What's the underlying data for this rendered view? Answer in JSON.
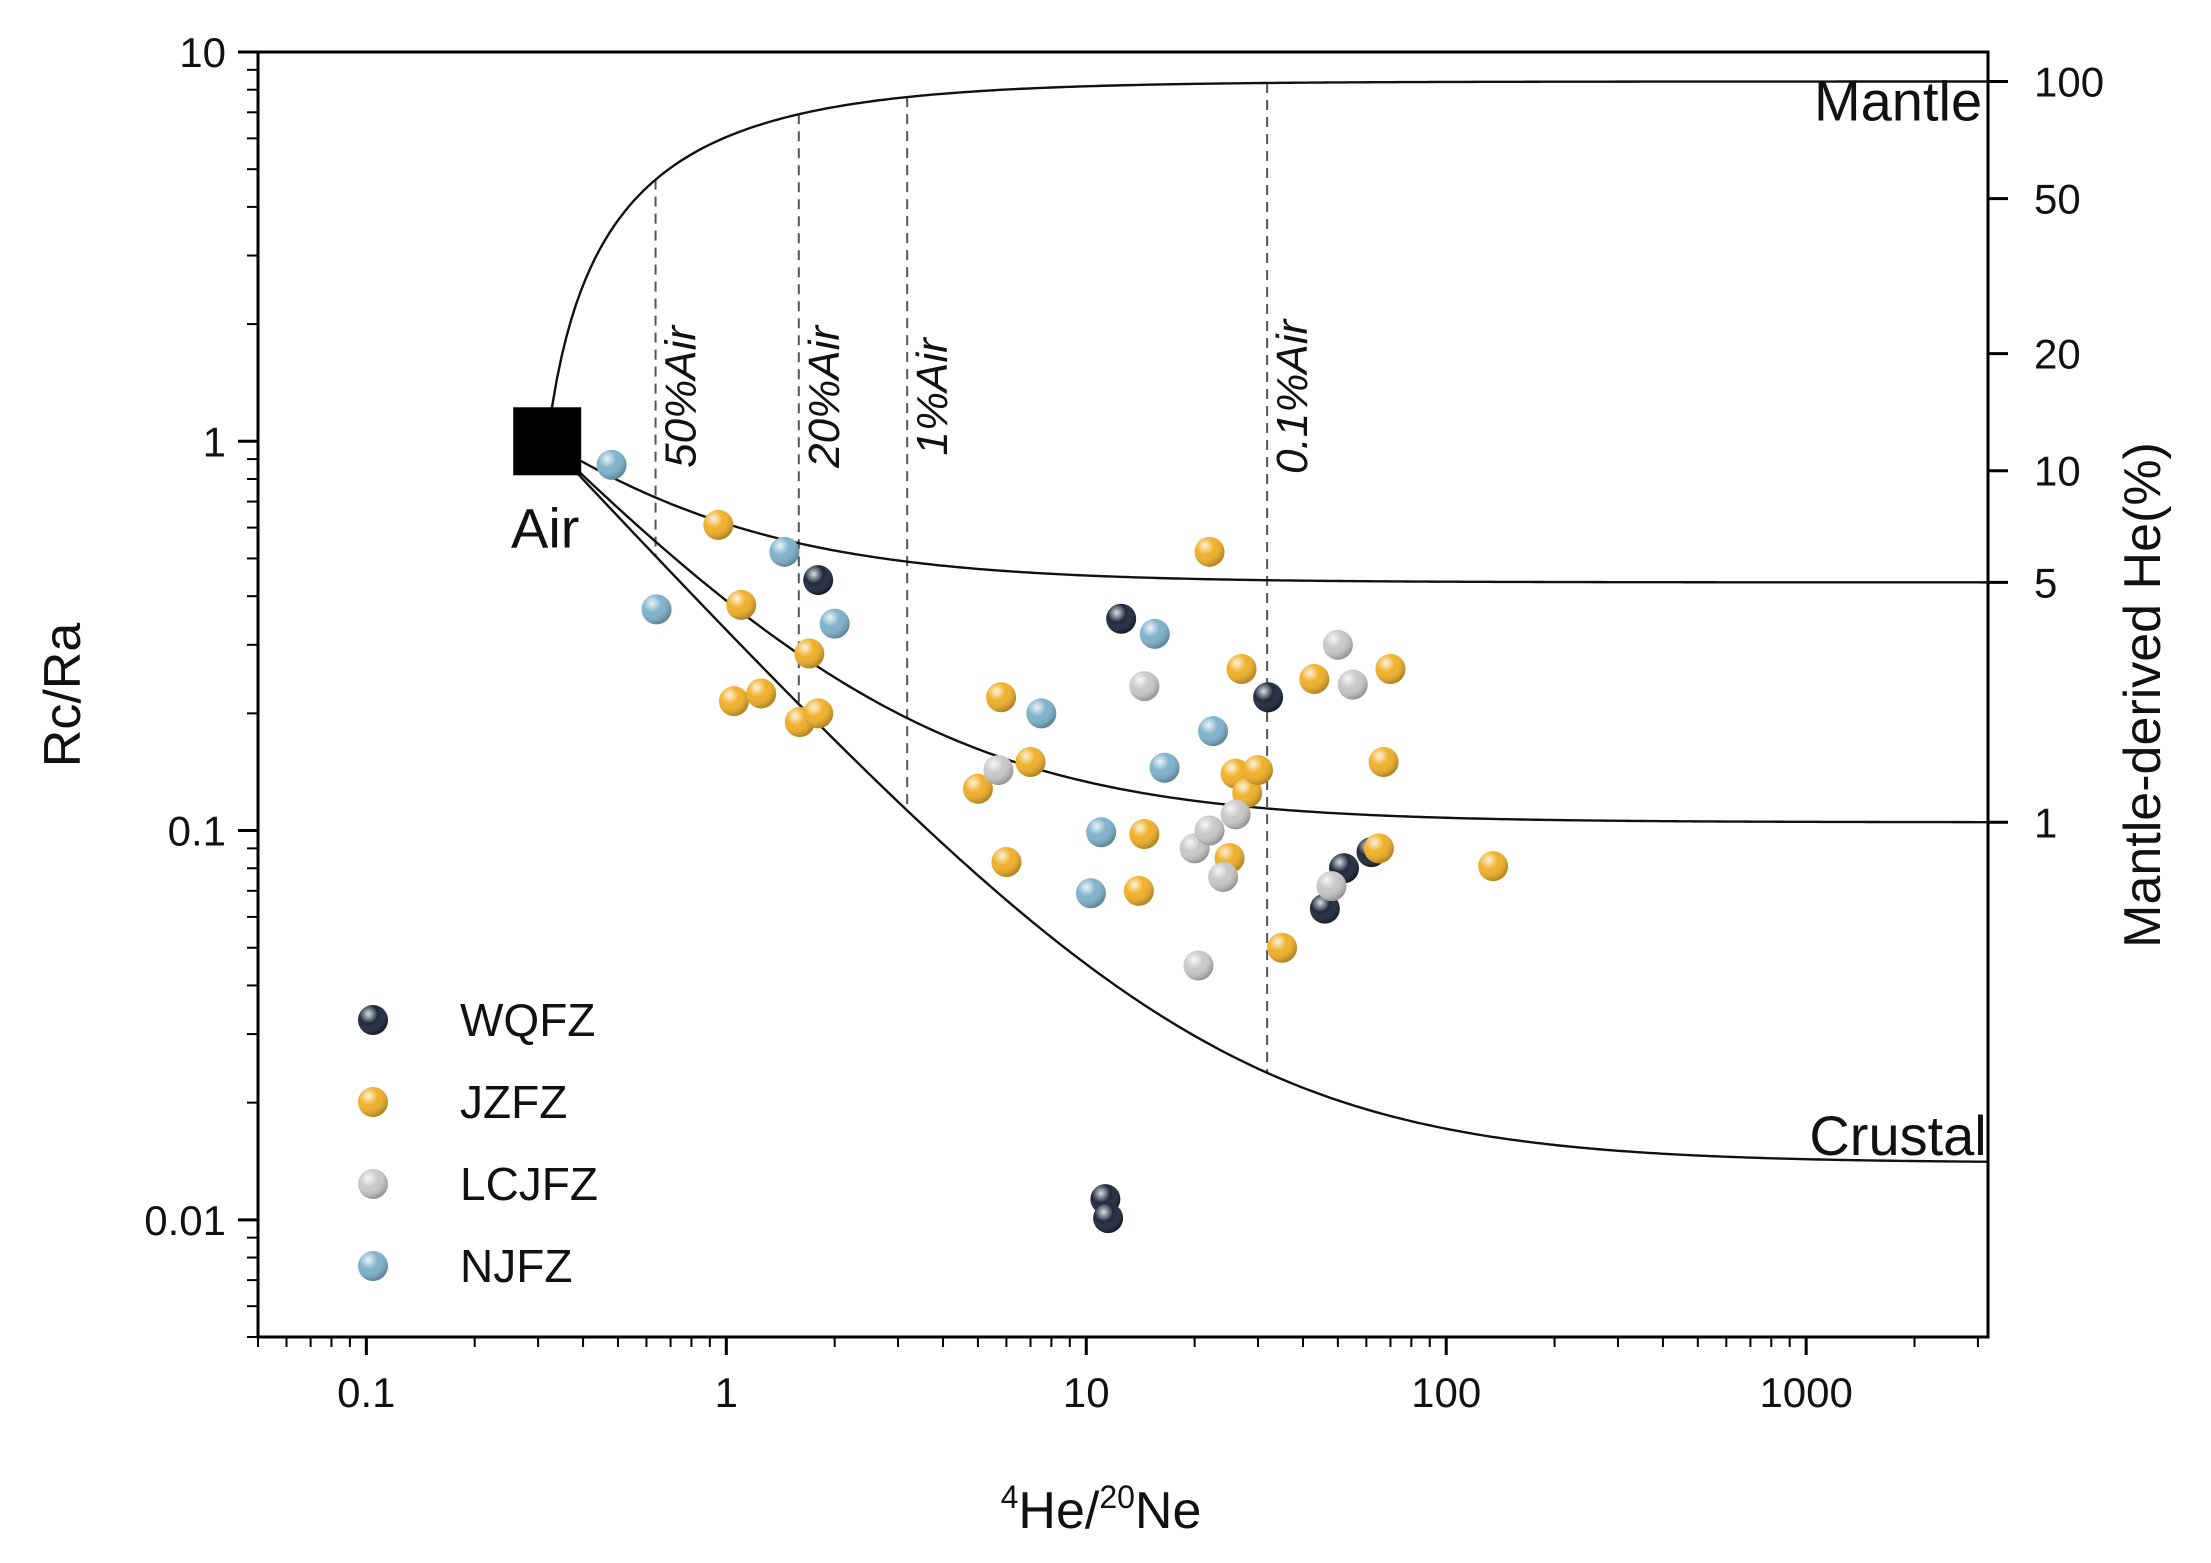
{
  "chart_data": {
    "type": "scatter",
    "title": "",
    "xlabel": {
      "sup1": "4",
      "base1": "He/",
      "sup2": "20",
      "base2": "Ne"
    },
    "ylabel": "Rc/Ra",
    "y2label": "Mantle-derived He(%)",
    "xscale": "log",
    "yscale": "log",
    "xlim": [
      0.05,
      3200
    ],
    "ylim": [
      0.005,
      10
    ],
    "x_ticks": [
      {
        "value": 0.1,
        "label": "0.1"
      },
      {
        "value": 1,
        "label": "1"
      },
      {
        "value": 10,
        "label": "10"
      },
      {
        "value": 100,
        "label": "100"
      },
      {
        "value": 1000,
        "label": "1000"
      }
    ],
    "y_ticks": [
      {
        "value": 0.01,
        "label": "0.01"
      },
      {
        "value": 0.1,
        "label": "0.1"
      },
      {
        "value": 1,
        "label": "1"
      },
      {
        "value": 10,
        "label": "10"
      }
    ],
    "y2_ticks": [
      {
        "value": 8.4,
        "label": "100"
      },
      {
        "value": 4.2,
        "label": "50"
      },
      {
        "value": 1.68,
        "label": "20"
      },
      {
        "value": 0.84,
        "label": "10"
      },
      {
        "value": 0.434,
        "label": "5"
      },
      {
        "value": 0.105,
        "label": "1"
      }
    ],
    "air_point": {
      "x": 0.318,
      "y": 1.0,
      "label": "Air"
    },
    "region_labels": [
      {
        "text": "Mantle",
        "x": 1800,
        "y": 7.5
      },
      {
        "text": "Crustal",
        "x": 1800,
        "y": 0.0165
      }
    ],
    "mixing_curves": [
      {
        "name": "mantle",
        "end_ratio": 8.4
      },
      {
        "name": "5pct",
        "end_ratio": 0.434
      },
      {
        "name": "1pct",
        "end_ratio": 0.105
      },
      {
        "name": "crustal",
        "end_ratio": 0.014
      }
    ],
    "air_lines": [
      {
        "x": 0.636,
        "label": "50%Air"
      },
      {
        "x": 1.59,
        "label": "20%Air"
      },
      {
        "x": 3.18,
        "label": "1%Air"
      },
      {
        "x": 31.8,
        "label": "0.1%Air"
      }
    ],
    "series": [
      {
        "name": "WQFZ",
        "color": "#1f2a3c",
        "points": [
          [
            1.8,
            0.44
          ],
          [
            12.5,
            0.35
          ],
          [
            32,
            0.22
          ],
          [
            46,
            0.063
          ],
          [
            52,
            0.08
          ],
          [
            62,
            0.088
          ],
          [
            11.3,
            0.0113
          ],
          [
            11.5,
            0.0101
          ]
        ]
      },
      {
        "name": "JZFZ",
        "color": "#f0b02a",
        "points": [
          [
            0.95,
            0.61
          ],
          [
            1.05,
            0.215
          ],
          [
            1.1,
            0.38
          ],
          [
            1.25,
            0.225
          ],
          [
            1.6,
            0.19
          ],
          [
            1.7,
            0.285
          ],
          [
            1.8,
            0.2
          ],
          [
            5.0,
            0.128
          ],
          [
            5.8,
            0.22
          ],
          [
            6.0,
            0.083
          ],
          [
            7.0,
            0.15
          ],
          [
            14,
            0.07
          ],
          [
            14.5,
            0.098
          ],
          [
            22,
            0.52
          ],
          [
            25,
            0.085
          ],
          [
            26,
            0.14
          ],
          [
            27,
            0.26
          ],
          [
            28,
            0.125
          ],
          [
            30,
            0.143
          ],
          [
            35,
            0.05
          ],
          [
            43,
            0.245
          ],
          [
            65,
            0.09
          ],
          [
            67,
            0.15
          ],
          [
            70,
            0.26
          ],
          [
            135,
            0.081
          ]
        ]
      },
      {
        "name": "LCJFZ",
        "color": "#c8c8c8",
        "points": [
          [
            5.7,
            0.143
          ],
          [
            14.5,
            0.235
          ],
          [
            20,
            0.09
          ],
          [
            20.5,
            0.045
          ],
          [
            22,
            0.1
          ],
          [
            24,
            0.076
          ],
          [
            26,
            0.11
          ],
          [
            48,
            0.072
          ],
          [
            50,
            0.3
          ],
          [
            55,
            0.237
          ]
        ]
      },
      {
        "name": "NJFZ",
        "color": "#7fb2cc",
        "points": [
          [
            0.48,
            0.87
          ],
          [
            0.64,
            0.37
          ],
          [
            1.45,
            0.52
          ],
          [
            2.0,
            0.34
          ],
          [
            7.5,
            0.2
          ],
          [
            10.3,
            0.069
          ],
          [
            11,
            0.099
          ],
          [
            15.5,
            0.32
          ],
          [
            16.5,
            0.145
          ],
          [
            22.5,
            0.18
          ]
        ]
      }
    ],
    "legend": {
      "position": "bottom-left",
      "entries": [
        "WQFZ",
        "JZFZ",
        "LCJFZ",
        "NJFZ"
      ]
    }
  }
}
